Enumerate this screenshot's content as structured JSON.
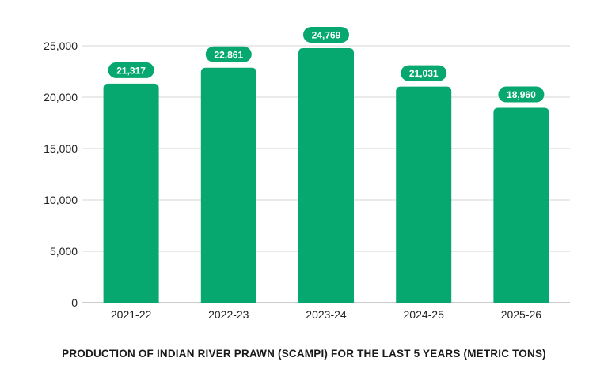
{
  "chart_data": {
    "type": "bar",
    "title": "PRODUCTION OF INDIAN RIVER PRAWN (SCAMPI) FOR THE LAST 5 YEARS (METRIC TONS)",
    "categories": [
      "2021-22",
      "2022-23",
      "2023-24",
      "2024-25",
      "2025-26"
    ],
    "values": [
      21317,
      22861,
      24769,
      21031,
      18960
    ],
    "value_labels": [
      "21,317",
      "22,861",
      "24,769",
      "21,031",
      "18,960"
    ],
    "yticks": [
      0,
      5000,
      10000,
      15000,
      20000,
      25000
    ],
    "ytick_labels": [
      "0",
      "5,000",
      "10,000",
      "15,000",
      "20,000",
      "25,000"
    ],
    "ylim": [
      0,
      25000
    ],
    "xlabel": "",
    "ylabel": "",
    "grid": true,
    "legend": "none",
    "bar_color": "#06a870"
  }
}
